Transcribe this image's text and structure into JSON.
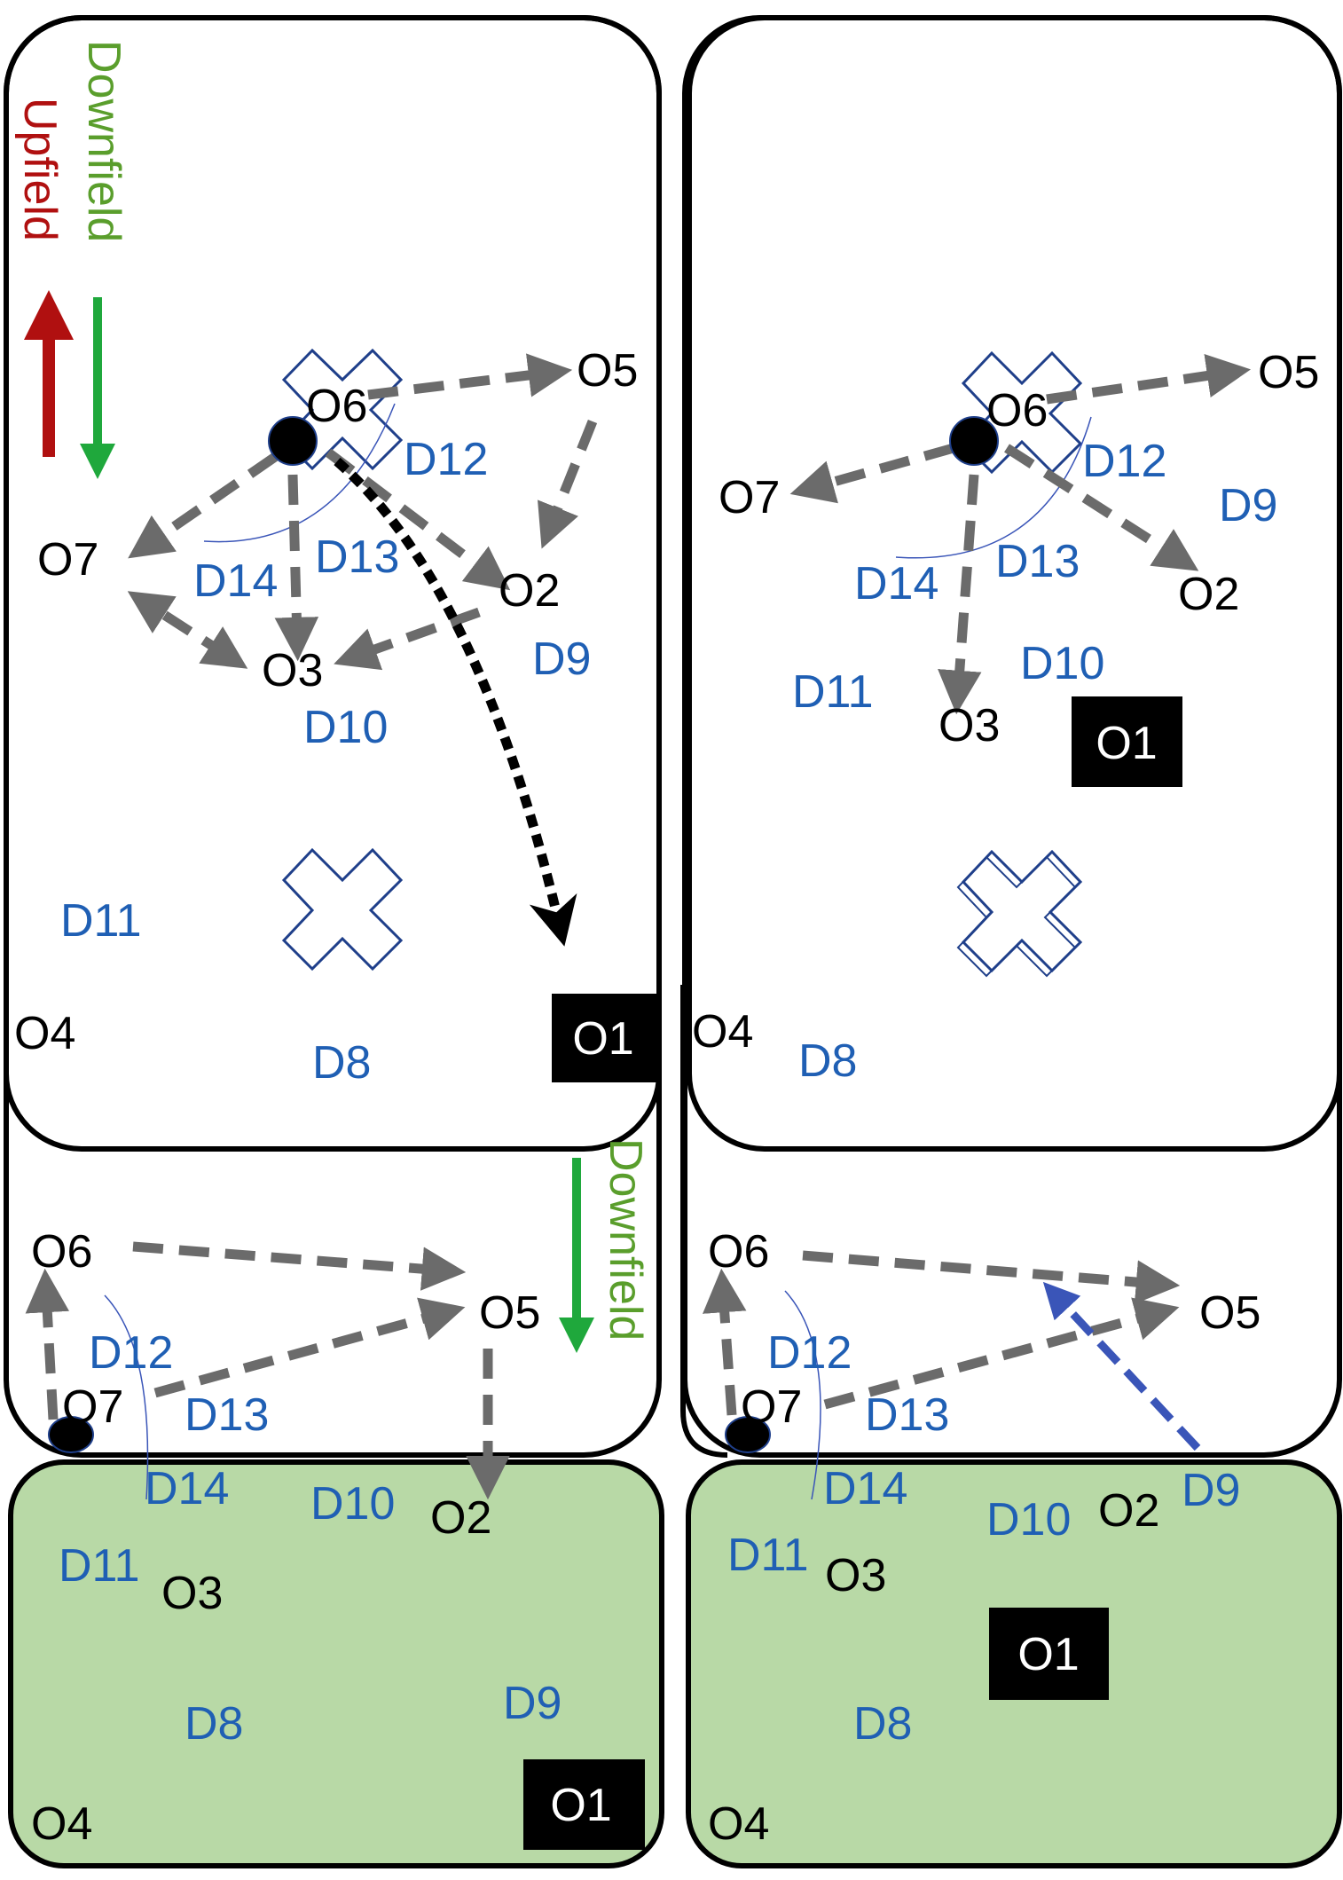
{
  "legend": {
    "upfield_label": "Upfield",
    "downfield_label": "Downfield",
    "downfield_label_bottom": "Downfield"
  },
  "colors": {
    "offense_text": "#000000",
    "defense_text": "#1f5fb4",
    "pass_arrow": "#6b6b6b",
    "throw_arrow": "#000000",
    "defender_arrow": "#3a55b8",
    "upfield_arrow": "#b01010",
    "downfield_arrow": "#1fa83c",
    "downfield_text": "#5a9e2c",
    "upfield_text": "#b01010",
    "endzone_fill": "#b8d9a6",
    "cone_stroke": "#1f3f8a",
    "disc_fill": "#000000"
  },
  "panels": {
    "top_left": {
      "offense": {
        "o1": "O1",
        "o2": "O2",
        "o3": "O3",
        "o4": "O4",
        "o5": "O5",
        "o6": "O6",
        "o7": "O7"
      },
      "defense": {
        "d8": "D8",
        "d9": "D9",
        "d10": "D10",
        "d11": "D11",
        "d12": "D12",
        "d13": "D13",
        "d14": "D14"
      }
    },
    "top_right": {
      "offense": {
        "o1": "O1",
        "o2": "O2",
        "o3": "O3",
        "o4": "O4",
        "o5": "O5",
        "o6": "O6",
        "o7": "O7"
      },
      "defense": {
        "d8": "D8",
        "d9": "D9",
        "d10": "D10",
        "d11": "D11",
        "d12": "D12",
        "d13": "D13",
        "d14": "D14"
      }
    },
    "bottom_left": {
      "offense": {
        "o1": "O1",
        "o2": "O2",
        "o3": "O3",
        "o4": "O4",
        "o5": "O5",
        "o6": "O6",
        "o7": "O7"
      },
      "defense": {
        "d8": "D8",
        "d9": "D9",
        "d10": "D10",
        "d11": "D11",
        "d12": "D12",
        "d13": "D13",
        "d14": "D14"
      }
    },
    "bottom_right": {
      "offense": {
        "o1": "O1",
        "o2": "O2",
        "o3": "O3",
        "o4": "O4",
        "o5": "O5",
        "o6": "O6",
        "o7": "O7"
      },
      "defense": {
        "d8": "D8",
        "d9": "D9",
        "d10": "D10",
        "d11": "D11",
        "d12": "D12",
        "d13": "D13",
        "d14": "D14"
      }
    }
  }
}
